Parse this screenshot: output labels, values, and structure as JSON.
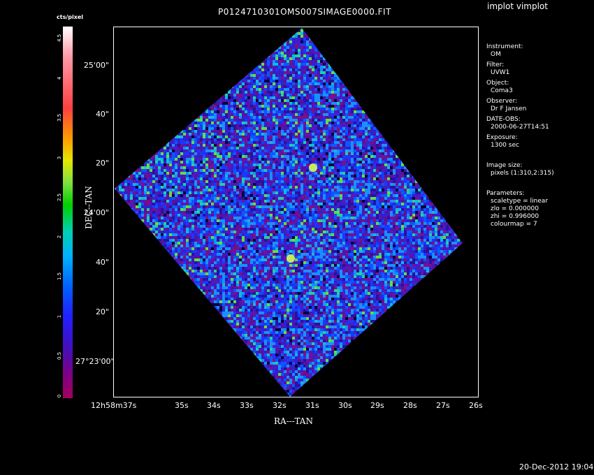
{
  "title": "P0124710301OMS007SIMAGE0000.FIT",
  "app_label": "implot vimplot",
  "timestamp": "20-Dec-2012 19:04",
  "colorbar": {
    "label": "cts/pixel",
    "ticks": [
      "4.5",
      "4",
      "3.5",
      "3",
      "2.5",
      "2",
      "1.5",
      "1",
      "0.5",
      "0"
    ]
  },
  "axes": {
    "xlabel": "RA---TAN",
    "ylabel": "DEC--TAN",
    "x_ticks": [
      "12h58m37s",
      "35s",
      "34s",
      "33s",
      "32s",
      "31s",
      "30s",
      "29s",
      "28s",
      "27s",
      "26s"
    ],
    "y_ticks": [
      "25'00\"",
      "40\"",
      "20\"",
      "24'00\"",
      "40\"",
      "20\"",
      "27°23'00\""
    ]
  },
  "info": {
    "instrument_k": "Instrument:",
    "instrument_v": "OM",
    "filter_k": "Filter:",
    "filter_v": "UVW1",
    "object_k": "Object:",
    "object_v": "Coma3",
    "observer_k": "Observer:",
    "observer_v": "Dr F Jansen",
    "date_k": "DATE-OBS:",
    "date_v": "2000-06-27T14:51",
    "exposure_k": "Exposure:",
    "exposure_v": "1300 sec",
    "imgsize_k": "Image size:",
    "imgsize_v": "pixels (1:310,2:315)",
    "params_k": "Parameters:",
    "p1": "scaletype = linear",
    "p2": "zlo = 0.000000",
    "p3": "zhi = 0.996000",
    "p4": "colourmap =   7"
  },
  "chart_data": {
    "type": "heatmap",
    "title": "P0124710301OMS007SIMAGE0000.FIT",
    "xlabel": "RA---TAN",
    "ylabel": "DEC--TAN",
    "colorbar_label": "cts/pixel",
    "colorbar_range": [
      0,
      4.5
    ],
    "x_ticks": [
      "12h58m37s",
      "35s",
      "34s",
      "33s",
      "32s",
      "31s",
      "30s",
      "29s",
      "28s",
      "27s",
      "26s"
    ],
    "y_ticks": [
      "27°23'00\"",
      "20\"",
      "40\"",
      "24'00\"",
      "20\"",
      "40\"",
      "25'00\""
    ],
    "colourmap": 7,
    "scaletype": "linear",
    "zlo": 0.0,
    "zhi": 0.996
  }
}
